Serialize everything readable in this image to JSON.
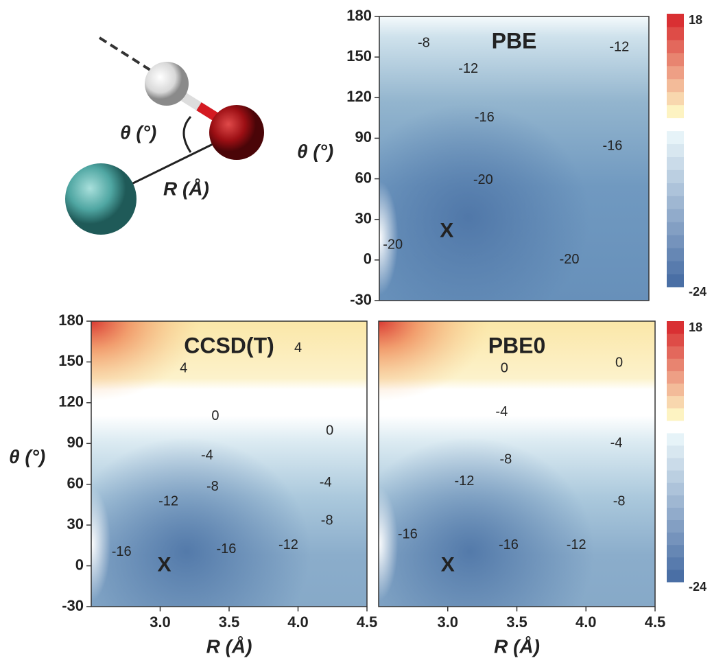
{
  "molecule": {
    "angle_label": "θ (°)",
    "distance_label": "R (Å)"
  },
  "chart_data": [
    {
      "type": "contour",
      "title": "PBE",
      "y_label": "θ (°)",
      "xlim": [
        2.5,
        4.5
      ],
      "ylim": [
        -30,
        180
      ],
      "yticks": [
        -30,
        0,
        30,
        60,
        90,
        120,
        150,
        180
      ],
      "contour_labels": [
        {
          "value": -8,
          "x": 2.83,
          "y": 160
        },
        {
          "value": -12,
          "x": 4.28,
          "y": 157
        },
        {
          "value": -12,
          "x": 3.16,
          "y": 141
        },
        {
          "value": -16,
          "x": 3.28,
          "y": 105
        },
        {
          "value": -16,
          "x": 4.23,
          "y": 84
        },
        {
          "value": -20,
          "x": 3.27,
          "y": 59
        },
        {
          "value": -20,
          "x": 2.6,
          "y": 11
        },
        {
          "value": -20,
          "x": 3.91,
          "y": 0
        }
      ],
      "minimum": {
        "label": "X",
        "x": 3.0,
        "y": 21
      },
      "colorbar": {
        "lim": [
          -24,
          18
        ],
        "ticks": [
          18,
          -24
        ]
      }
    },
    {
      "type": "contour",
      "title": "CCSD(T)",
      "y_label": "θ (°)",
      "x_label": "R (Å)",
      "xlim": [
        2.5,
        4.5
      ],
      "ylim": [
        -30,
        180
      ],
      "yticks": [
        -30,
        0,
        30,
        60,
        90,
        120,
        150,
        180
      ],
      "xticks": [
        {
          "value": 3,
          "label": "3.0"
        },
        3.5,
        {
          "value": 4,
          "label": "4.0"
        },
        4.5
      ],
      "contour_labels": [
        {
          "value": 4,
          "x": 3.17,
          "y": 145
        },
        {
          "value": 4,
          "x": 4.0,
          "y": 160
        },
        {
          "value": 0,
          "x": 3.4,
          "y": 110
        },
        {
          "value": 0,
          "x": 4.23,
          "y": 99
        },
        {
          "value": -4,
          "x": 3.34,
          "y": 81
        },
        {
          "value": -4,
          "x": 4.2,
          "y": 61
        },
        {
          "value": -8,
          "x": 3.38,
          "y": 58
        },
        {
          "value": -8,
          "x": 4.21,
          "y": 33
        },
        {
          "value": -12,
          "x": 3.06,
          "y": 47
        },
        {
          "value": -12,
          "x": 3.93,
          "y": 15
        },
        {
          "value": -16,
          "x": 2.72,
          "y": 10
        },
        {
          "value": -16,
          "x": 3.48,
          "y": 12
        }
      ],
      "minimum": {
        "label": "X",
        "x": 3.03,
        "y": 0
      }
    },
    {
      "type": "contour",
      "title": "PBE0",
      "x_label": "R (Å)",
      "xlim": [
        2.5,
        4.5
      ],
      "ylim": [
        -30,
        180
      ],
      "xticks": [
        {
          "value": 3,
          "label": "3.0"
        },
        3.5,
        {
          "value": 4,
          "label": "4.0"
        },
        4.5
      ],
      "contour_labels": [
        {
          "value": 0,
          "x": 3.41,
          "y": 145
        },
        {
          "value": 0,
          "x": 4.24,
          "y": 149
        },
        {
          "value": -4,
          "x": 3.39,
          "y": 113
        },
        {
          "value": -4,
          "x": 4.22,
          "y": 90
        },
        {
          "value": -8,
          "x": 3.42,
          "y": 78
        },
        {
          "value": -8,
          "x": 4.24,
          "y": 47
        },
        {
          "value": -12,
          "x": 3.12,
          "y": 62
        },
        {
          "value": -12,
          "x": 3.93,
          "y": 15
        },
        {
          "value": -16,
          "x": 2.71,
          "y": 23
        },
        {
          "value": -16,
          "x": 3.44,
          "y": 15
        }
      ],
      "minimum": {
        "label": "X",
        "x": 3.0,
        "y": 0
      },
      "colorbar": {
        "lim": [
          -24,
          18
        ],
        "ticks": [
          18,
          -24
        ]
      }
    }
  ]
}
